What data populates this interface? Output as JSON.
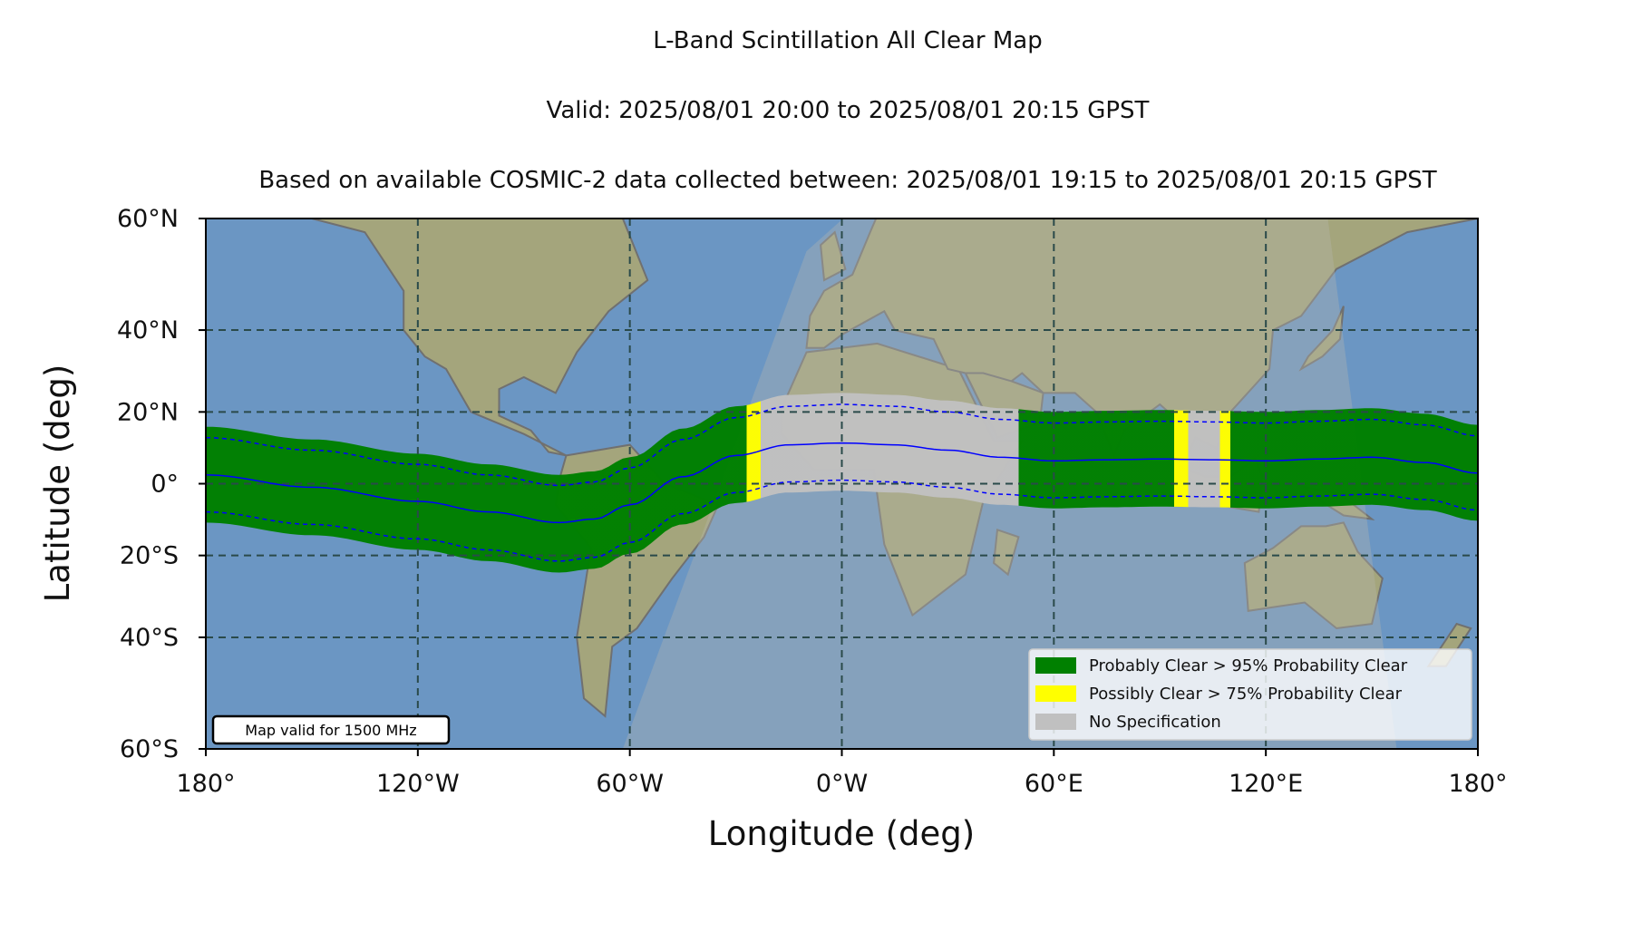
{
  "title": {
    "line1": "L-Band Scintillation All Clear Map",
    "line2": "Valid: 2025/08/01 20:00 to 2025/08/01 20:15 GPST",
    "line3": "Based on available COSMIC-2 data collected between: 2025/08/01 19:15 to 2025/08/01 20:15 GPST"
  },
  "axes": {
    "xlabel": "Longitude (deg)",
    "ylabel": "Latitude (deg)",
    "xticks": [
      {
        "value": -180,
        "label": "180°"
      },
      {
        "value": -120,
        "label": "120°W"
      },
      {
        "value": -60,
        "label": "60°W"
      },
      {
        "value": 0,
        "label": "0°W"
      },
      {
        "value": 60,
        "label": "60°E"
      },
      {
        "value": 120,
        "label": "120°E"
      },
      {
        "value": 180,
        "label": "180°"
      }
    ],
    "yticks": [
      {
        "value": 60,
        "label": "60°N"
      },
      {
        "value": 40,
        "label": "40°N"
      },
      {
        "value": 20,
        "label": "20°N"
      },
      {
        "value": 0,
        "label": "0°"
      },
      {
        "value": -20,
        "label": "20°S"
      },
      {
        "value": -40,
        "label": "40°S"
      },
      {
        "value": -60,
        "label": "60°S"
      }
    ],
    "xlim": [
      -180,
      180
    ],
    "ylim": [
      -60,
      60
    ],
    "y_scale": "mercator",
    "grid": true
  },
  "legend": {
    "placement": "lower-right",
    "items": [
      {
        "label": "Probably Clear > 95% Probability Clear",
        "color": "#008000"
      },
      {
        "label": "Possibly Clear > 75% Probability Clear",
        "color": "#ffff00"
      },
      {
        "label": "No Specification",
        "color": "#c0c0c0"
      }
    ]
  },
  "note": "Map valid for 1500 MHz",
  "colors": {
    "ocean": "#6b96c3",
    "land": "#a4a57c",
    "borders": "#707070",
    "probably_clear": "#008000",
    "possibly_clear": "#ffff00",
    "no_specification": "#c0c0c0",
    "dip_equator": "#0000ff",
    "grid": "#2a4a4a"
  },
  "chart_data": {
    "type": "map",
    "dip_equator": {
      "lon": [
        -180,
        -150,
        -120,
        -100,
        -80,
        -70,
        -60,
        -45,
        -30,
        -15,
        0,
        15,
        30,
        45,
        60,
        75,
        90,
        105,
        120,
        135,
        150,
        165,
        180
      ],
      "lat": [
        2.5,
        -1,
        -5,
        -8,
        -11,
        -10,
        -6,
        2,
        8,
        11,
        11.5,
        11,
        9.5,
        7.5,
        6.5,
        6.8,
        7,
        6.8,
        6.5,
        7,
        7.5,
        6,
        3
      ]
    },
    "band_half_width_deg": 13.5,
    "dashed_offset_deg": 10.5,
    "classification_by_longitude": [
      {
        "from": -180,
        "to": -27,
        "category": "Probably Clear"
      },
      {
        "from": -27,
        "to": -23,
        "category": "Possibly Clear"
      },
      {
        "from": -23,
        "to": 50,
        "category": "No Specification"
      },
      {
        "from": 50,
        "to": 94,
        "category": "Probably Clear"
      },
      {
        "from": 94,
        "to": 98,
        "category": "Possibly Clear"
      },
      {
        "from": 98,
        "to": 107,
        "category": "No Specification"
      },
      {
        "from": 107,
        "to": 110,
        "category": "Possibly Clear"
      },
      {
        "from": 110,
        "to": 180,
        "category": "Probably Clear"
      }
    ],
    "coverage_region": "shaded region between longitudes about -62 and 157 where COSMIC-2 data are available"
  }
}
